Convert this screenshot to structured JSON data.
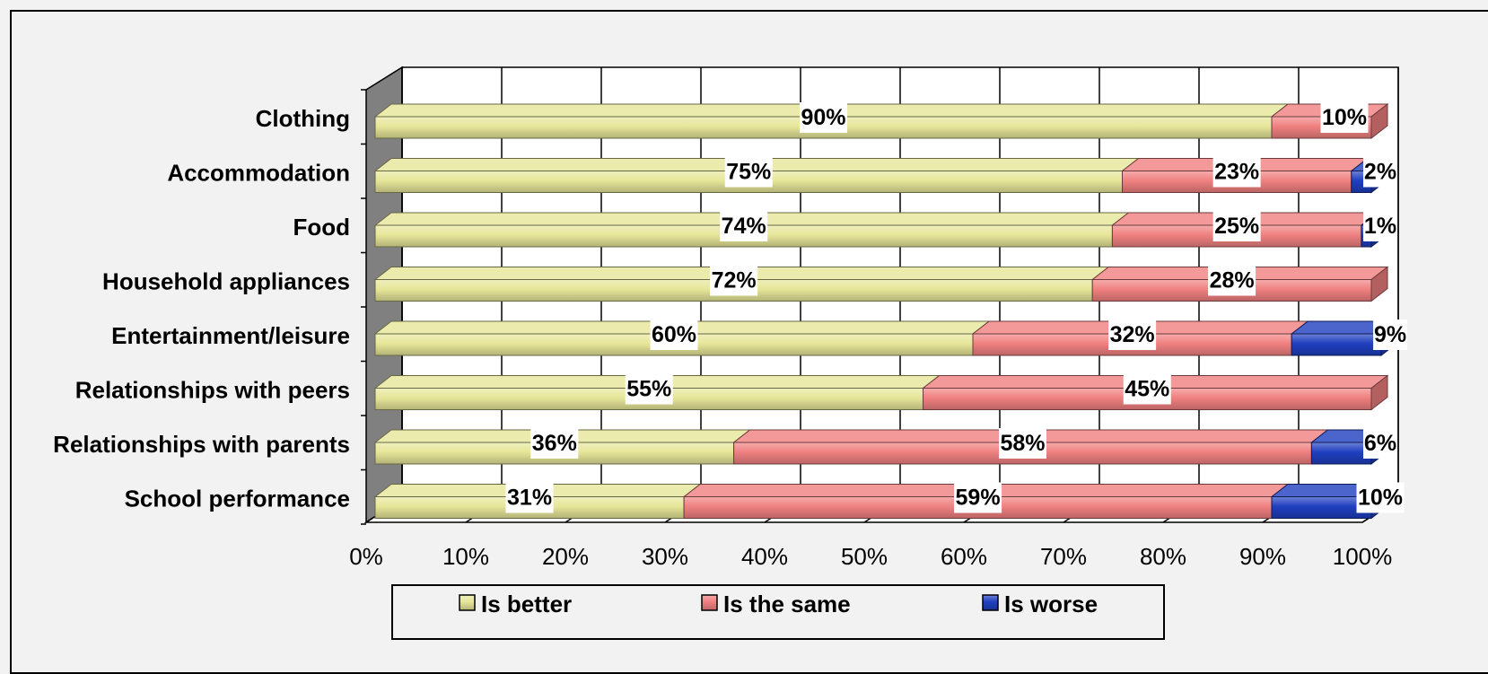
{
  "chart_data": {
    "type": "bar",
    "orientation": "horizontal",
    "stacked": true,
    "percent_stacked": true,
    "categories": [
      "Clothing",
      "Accommodation",
      "Food",
      "Household appliances",
      "Entertainment/leisure",
      "Relationships with peers",
      "Relationships with parents",
      "School performance"
    ],
    "series": [
      {
        "name": "Is better",
        "color": "#e6e699",
        "values": [
          90,
          75,
          74,
          72,
          60,
          55,
          36,
          31
        ],
        "labels": [
          "90%",
          "75%",
          "74%",
          "72%",
          "60%",
          "55%",
          "36%",
          "31%"
        ]
      },
      {
        "name": "Is the same",
        "color": "#f08080",
        "values": [
          10,
          23,
          25,
          28,
          32,
          45,
          58,
          59
        ],
        "labels": [
          "10%",
          "23%",
          "25%",
          "28%",
          "32%",
          "45%",
          "58%",
          "59%"
        ]
      },
      {
        "name": "Is worse",
        "color": "#1f3fbf",
        "values": [
          0,
          2,
          1,
          0,
          9,
          0,
          6,
          10
        ],
        "labels": [
          "",
          "2%",
          "1%",
          "",
          "9%",
          "",
          "6%",
          "10%"
        ]
      }
    ],
    "xlim": [
      0,
      100
    ],
    "x_ticks": [
      "0%",
      "10%",
      "20%",
      "30%",
      "40%",
      "50%",
      "60%",
      "70%",
      "80%",
      "90%",
      "100%"
    ],
    "grid": true,
    "legend_position": "bottom",
    "three_d": true
  }
}
